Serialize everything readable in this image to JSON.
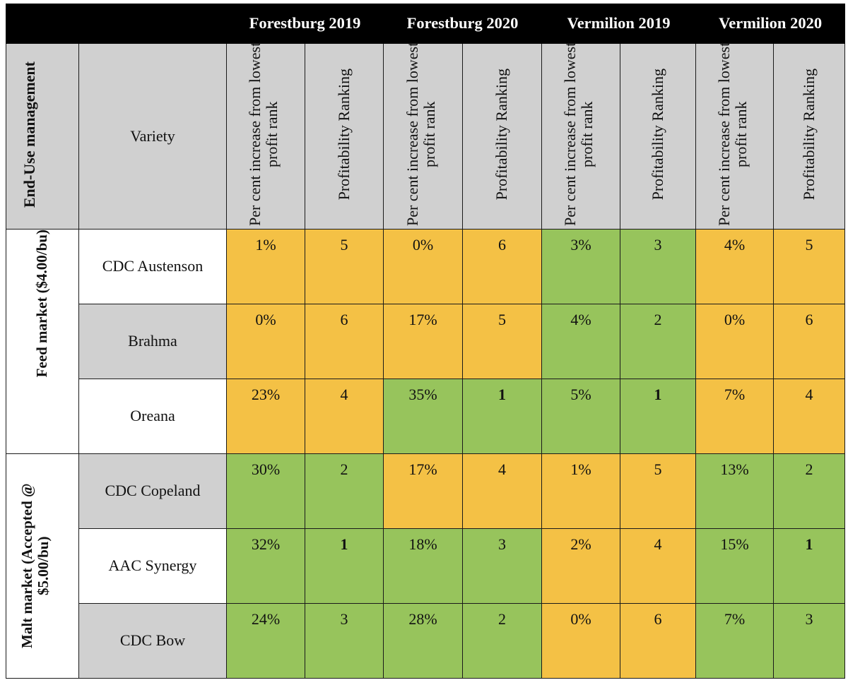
{
  "columns": {
    "blank": "",
    "locations": [
      "Forestburg 2019",
      "Forestburg 2020",
      "Vermilion 2019",
      "Vermilion 2020"
    ]
  },
  "subheader": {
    "end_use": "End-Use management",
    "variety": "Variety",
    "pct": "Per cent increase from lowest profit rank",
    "rank": "Profitability Ranking"
  },
  "groups": [
    {
      "label": "Feed market ($4.00/bu)",
      "rows": [
        {
          "variety": "CDC Austenson",
          "cells": [
            "1%",
            "5",
            "0%",
            "6",
            "3%",
            "3",
            "4%",
            "5"
          ]
        },
        {
          "variety": "Brahma",
          "cells": [
            "0%",
            "6",
            "17%",
            "5",
            "4%",
            "2",
            "0%",
            "6"
          ]
        },
        {
          "variety": "Oreana",
          "cells": [
            "23%",
            "4",
            "35%",
            "1",
            "5%",
            "1",
            "7%",
            "4"
          ]
        }
      ]
    },
    {
      "label": "Malt market (Accepted @ $5.00/bu)",
      "rows": [
        {
          "variety": "CDC Copeland",
          "cells": [
            "30%",
            "2",
            "17%",
            "4",
            "1%",
            "5",
            "13%",
            "2"
          ]
        },
        {
          "variety": "AAC Synergy",
          "cells": [
            "32%",
            "1",
            "18%",
            "3",
            "2%",
            "4",
            "15%",
            "1"
          ]
        },
        {
          "variety": "CDC Bow",
          "cells": [
            "24%",
            "3",
            "28%",
            "2",
            "0%",
            "6",
            "7%",
            "3"
          ]
        }
      ]
    }
  ],
  "colors": {
    "orange": "#f4c145",
    "green": "#97c45c",
    "grey": "#d0d0d0",
    "header": "#000000"
  }
}
